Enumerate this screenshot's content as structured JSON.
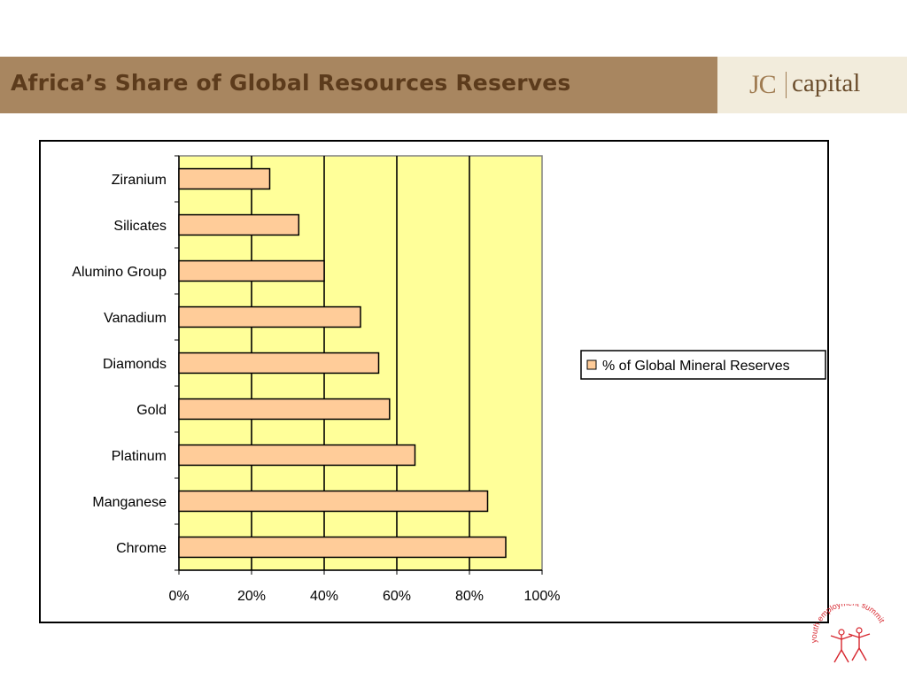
{
  "slide": {
    "title": "Africa’s Share of Global Resources Reserves"
  },
  "logo": {
    "jc": "JC",
    "capital": "capital"
  },
  "footer_logo": {
    "text": "youth employment summit",
    "color": "#d7262e"
  },
  "colors": {
    "header_bar": "#a88660",
    "title_text": "#5c3b1c",
    "plot_area": "#ffff99",
    "bar_fill": "#ffcc99",
    "bar_stroke": "#000000"
  },
  "chart_data": {
    "type": "bar",
    "orientation": "horizontal",
    "categories": [
      "Chrome",
      "Manganese",
      "Platinum",
      "Gold",
      "Diamonds",
      "Vanadium",
      "Alumino Group",
      "Silicates",
      "Ziranium"
    ],
    "series": [
      {
        "name": "% of Global Mineral Reserves",
        "values": [
          90,
          85,
          65,
          58,
          55,
          50,
          40,
          33,
          25
        ]
      }
    ],
    "xlim": [
      0,
      100
    ],
    "x_ticks": [
      "0%",
      "20%",
      "40%",
      "60%",
      "80%",
      "100%"
    ],
    "x_tick_values": [
      0,
      20,
      40,
      60,
      80,
      100
    ],
    "xlabel": "",
    "ylabel": "",
    "grid": "vertical major gridlines",
    "legend_position": "right"
  }
}
